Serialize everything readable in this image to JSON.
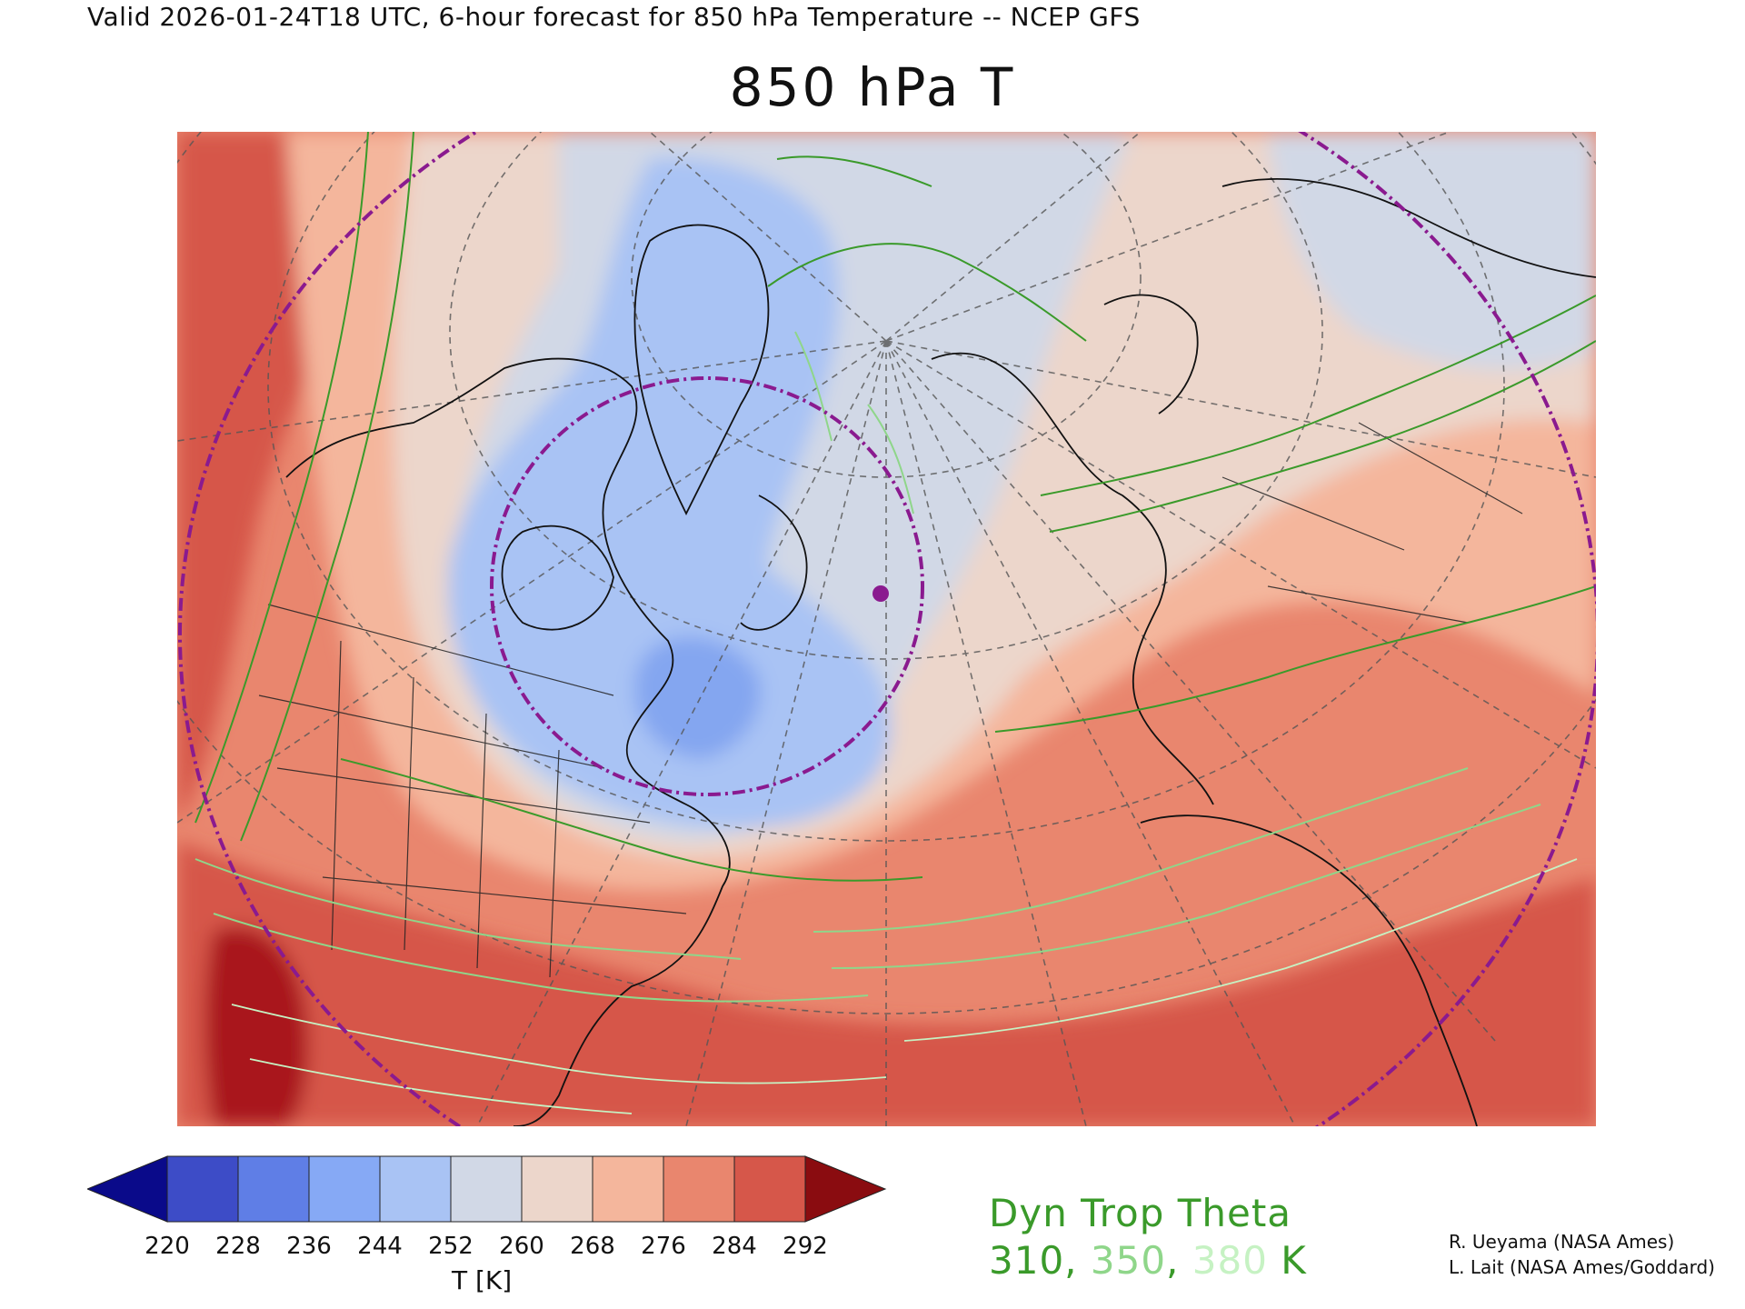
{
  "header": {
    "valid_line": "Valid 2026-01-24T18 UTC, 6-hour forecast for 850 hPa Temperature -- NCEP GFS",
    "title": "850 hPa T"
  },
  "map": {
    "projection": "polar stereographic, North Atlantic / North America sector",
    "region_fill": {
      "warm_south_margin": "#d6574a",
      "subtropics": "#e9866e",
      "midlatitudes": "#f4b69c",
      "transition": "#ecd6cb",
      "cool": "#d1d8e6",
      "cold": "#a9c3f4",
      "coldest_core": "#84a6f0",
      "extreme_warm": "#a9141d"
    },
    "contour_colors": {
      "theta_310": "#3a9a2a",
      "theta_350": "#8fd68a",
      "theta_380": "#c6f2c3"
    },
    "circle_color": "#8a1a8f",
    "marker_label": "location marker"
  },
  "colorbar": {
    "colors": [
      "#0a0a8a",
      "#3d4cc7",
      "#5f7ee6",
      "#86a9f5",
      "#a9c3f4",
      "#d1d8e6",
      "#ecd6cb",
      "#f4b69c",
      "#e9866e",
      "#d6574a",
      "#8a0c10"
    ],
    "ticks": [
      "220",
      "228",
      "236",
      "244",
      "252",
      "260",
      "268",
      "276",
      "284",
      "292"
    ],
    "unit": "T [K]"
  },
  "legend": {
    "title": "Dyn Trop Theta",
    "values": [
      {
        "text": "310",
        "color": "#3a9a2a"
      },
      {
        "text": "350",
        "color": "#8fd68a"
      },
      {
        "text": "380",
        "color": "#c6f2c3"
      }
    ],
    "separator": ", ",
    "unit": " K",
    "unit_color": "#3a9a2a"
  },
  "credits": {
    "line1": "R. Ueyama (NASA Ames)",
    "line2": "L. Lait (NASA Ames/Goddard)"
  }
}
